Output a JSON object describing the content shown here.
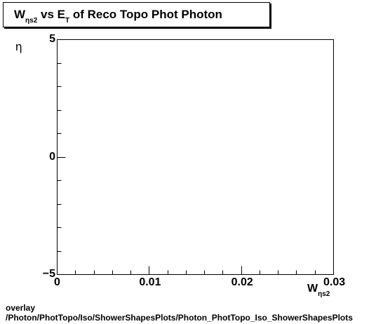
{
  "title": {
    "w": "W",
    "w_sub": "ηs2",
    "vs_e": " vs E",
    "t_sub": "T",
    "rest": " of Reco Topo Phot Photon"
  },
  "chart_data": {
    "type": "scatter",
    "xlim": [
      0,
      0.03
    ],
    "ylim": [
      -5,
      5
    ],
    "x_ticks": [
      "0",
      "0.01",
      "0.02",
      "0.03"
    ],
    "y_ticks": [
      "5",
      "0",
      "−5"
    ],
    "x_tick_values": [
      0,
      0.01,
      0.02,
      0.03
    ],
    "y_tick_values": [
      5,
      0,
      -5
    ],
    "xlabel_main": "W",
    "xlabel_sub": "ηs2",
    "ylabel": "η",
    "points": []
  },
  "footer": {
    "line1": "overlay",
    "line2": "/Photon/PhotTopo/Iso/ShowerShapesPlots/Photon_PhotTopo_Iso_ShowerShapesPlots"
  }
}
